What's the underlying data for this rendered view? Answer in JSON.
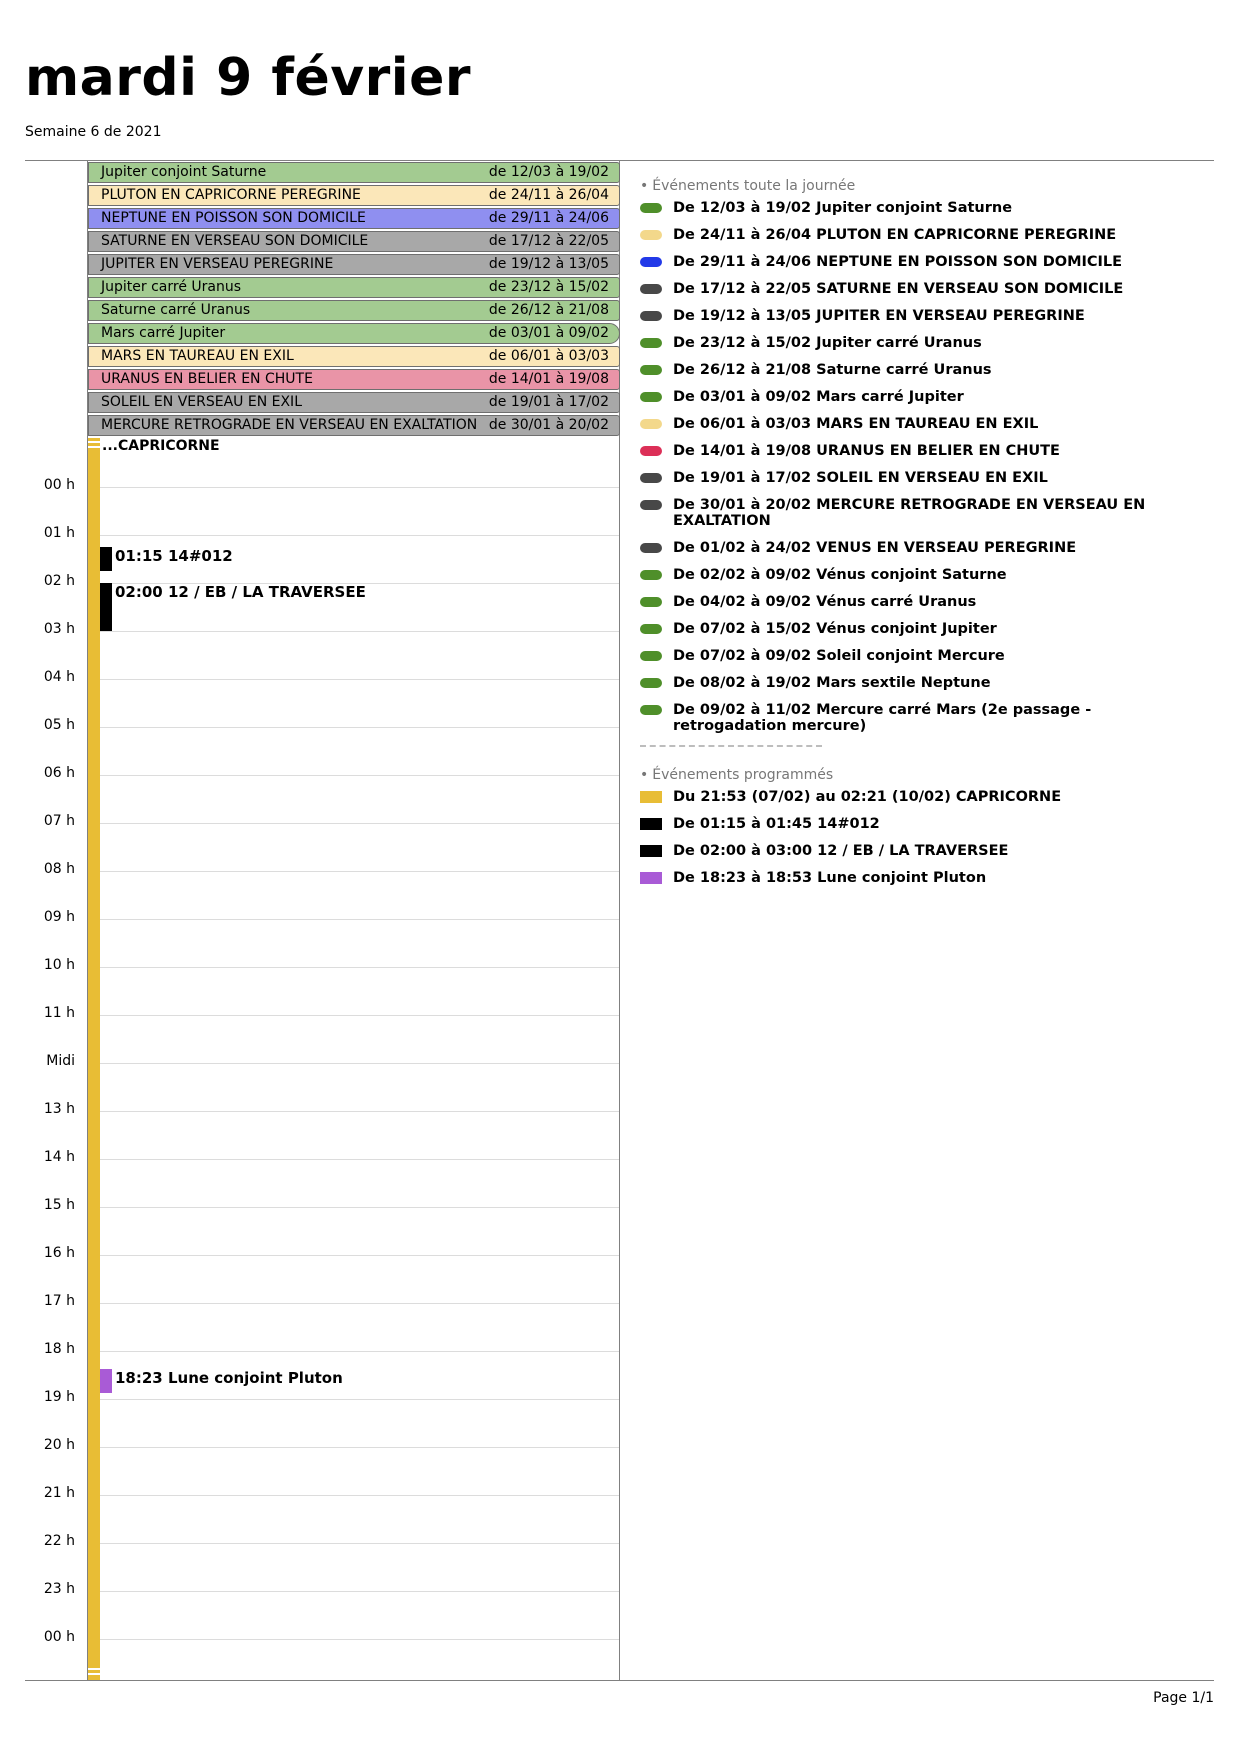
{
  "header": {
    "title": "mardi 9 février",
    "week": "Semaine 6 de 2021"
  },
  "all_day_bars": [
    {
      "name": "Jupiter conjoint Saturne",
      "range": "de 12/03 à 19/02",
      "color": "#a3cb91"
    },
    {
      "name": "PLUTON EN CAPRICORNE PEREGRINE",
      "range": "de 24/11 à 26/04",
      "color": "#fbe7b9"
    },
    {
      "name": "NEPTUNE EN POISSON SON DOMICILE",
      "range": "de 29/11 à 24/06",
      "color": "#8f8ff0"
    },
    {
      "name": "SATURNE EN VERSEAU SON DOMICILE",
      "range": "de 17/12 à 22/05",
      "color": "#a8a8a8"
    },
    {
      "name": "JUPITER EN VERSEAU PEREGRINE",
      "range": "de 19/12 à 13/05",
      "color": "#a8a8a8"
    },
    {
      "name": "Jupiter carré Uranus",
      "range": "de 23/12 à 15/02",
      "color": "#a3cb91"
    },
    {
      "name": "Saturne carré Uranus",
      "range": "de 26/12 à 21/08",
      "color": "#a3cb91"
    },
    {
      "name": "Mars carré Jupiter",
      "range": "de 03/01 à 09/02",
      "color": "#a3cb91"
    },
    {
      "name": "MARS EN TAUREAU EN EXIL",
      "range": "de 06/01 à 03/03",
      "color": "#fbe7b9"
    },
    {
      "name": "URANUS EN BELIER EN CHUTE",
      "range": "de 14/01 à 19/08",
      "color": "#e994a7"
    },
    {
      "name": "SOLEIL EN VERSEAU EN EXIL",
      "range": "de 19/01 à 17/02",
      "color": "#a8a8a8"
    },
    {
      "name": "MERCURE RETROGRADE EN VERSEAU EN EXALTATION",
      "range": "de 30/01 à 20/02",
      "color": "#a8a8a8"
    }
  ],
  "hours": [
    "00 h",
    "01 h",
    "02 h",
    "03 h",
    "04 h",
    "05 h",
    "06 h",
    "07 h",
    "08 h",
    "09 h",
    "10 h",
    "11 h",
    "Midi",
    "13 h",
    "14 h",
    "15 h",
    "16 h",
    "17 h",
    "18 h",
    "19 h",
    "20 h",
    "21 h",
    "22 h",
    "23 h",
    "00 h"
  ],
  "timeline": {
    "continuation_label": "...CAPRICORNE",
    "events": [
      {
        "label": "01:15 14#012",
        "start_hour": 1.25,
        "end_hour": 1.75,
        "color": "#000000"
      },
      {
        "label": "02:00 12 / EB / LA TRAVERSEE",
        "start_hour": 2.0,
        "end_hour": 3.0,
        "color": "#000000"
      },
      {
        "label": "18:23 Lune conjoint Pluton",
        "start_hour": 18.383,
        "end_hour": 18.883,
        "color": "#a95bd6"
      }
    ]
  },
  "right_panel": {
    "all_day_title": "Événements toute la journée",
    "all_day_events": [
      {
        "text": "De 12/03 à 19/02 Jupiter conjoint Saturne",
        "color": "#4f8f2a"
      },
      {
        "text": "De 24/11 à 26/04 PLUTON EN CAPRICORNE PEREGRINE",
        "color": "#f3d88b"
      },
      {
        "text": "De 29/11 à 24/06 NEPTUNE EN POISSON SON DOMICILE",
        "color": "#2239e8"
      },
      {
        "text": "De 17/12 à 22/05 SATURNE EN VERSEAU SON DOMICILE",
        "color": "#484848"
      },
      {
        "text": "De 19/12 à 13/05 JUPITER EN VERSEAU PEREGRINE",
        "color": "#484848"
      },
      {
        "text": "De 23/12 à 15/02 Jupiter carré Uranus",
        "color": "#4f8f2a"
      },
      {
        "text": "De 26/12 à 21/08 Saturne carré Uranus",
        "color": "#4f8f2a"
      },
      {
        "text": "De 03/01 à 09/02 Mars carré Jupiter",
        "color": "#4f8f2a"
      },
      {
        "text": "De 06/01 à 03/03 MARS EN TAUREAU EN EXIL",
        "color": "#f3d88b"
      },
      {
        "text": "De 14/01 à 19/08 URANUS EN BELIER EN CHUTE",
        "color": "#dc2f57"
      },
      {
        "text": "De 19/01 à 17/02 SOLEIL EN VERSEAU EN EXIL",
        "color": "#484848"
      },
      {
        "text": "De 30/01 à 20/02 MERCURE RETROGRADE EN VERSEAU EN EXALTATION",
        "color": "#484848"
      },
      {
        "text": "De 01/02 à 24/02 VENUS EN VERSEAU PEREGRINE",
        "color": "#484848"
      },
      {
        "text": "De 02/02 à 09/02 Vénus conjoint Saturne",
        "color": "#4f8f2a"
      },
      {
        "text": "De 04/02 à 09/02 Vénus carré Uranus",
        "color": "#4f8f2a"
      },
      {
        "text": "De 07/02 à 15/02 Vénus conjoint Jupiter",
        "color": "#4f8f2a"
      },
      {
        "text": "De 07/02 à 09/02 Soleil conjoint Mercure",
        "color": "#4f8f2a"
      },
      {
        "text": "De 08/02 à 19/02 Mars sextile Neptune",
        "color": "#4f8f2a"
      },
      {
        "text": "De 09/02 à 11/02 Mercure carré Mars (2e passage - retrogadation mercure)",
        "color": "#4f8f2a"
      }
    ],
    "scheduled_title": "Événements programmés",
    "scheduled_events": [
      {
        "text": "Du 21:53 (07/02) au 02:21 (10/02) CAPRICORNE",
        "color": "#e8bd35"
      },
      {
        "text": "De 01:15 à 01:45 14#012",
        "color": "#000000"
      },
      {
        "text": "De 02:00 à 03:00 12 / EB / LA TRAVERSEE",
        "color": "#000000"
      },
      {
        "text": "De 18:23 à 18:53 Lune conjoint Pluton",
        "color": "#a95bd6"
      }
    ]
  },
  "footer": {
    "page": "Page 1/1"
  }
}
